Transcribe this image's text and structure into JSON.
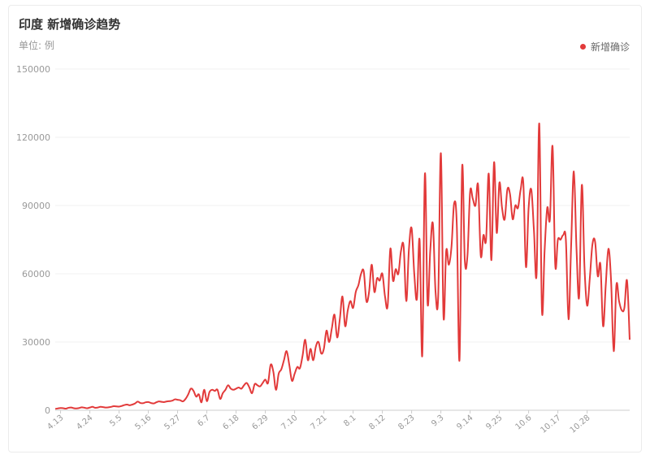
{
  "header": {
    "title": "印度 新增确诊趋势",
    "unit": "单位: 例"
  },
  "legend": {
    "label": "新增确诊",
    "color": "#e23a3a"
  },
  "chart_data": {
    "type": "line",
    "title": "印度 新增确诊趋势",
    "ylabel": "单位: 例",
    "ylim": [
      0,
      150000
    ],
    "y_ticks": [
      0,
      30000,
      60000,
      90000,
      120000,
      150000
    ],
    "x_start": "4.11",
    "x_ticks": [
      "4.13",
      "4.24",
      "5.5",
      "5.16",
      "5.27",
      "6.7",
      "6.18",
      "6.29",
      "7.10",
      "7.21",
      "8.1",
      "8.12",
      "8.23",
      "9.3",
      "9.14",
      "9.25",
      "10.6",
      "10.17",
      "10.28"
    ],
    "legend_position": "top-right",
    "grid": true,
    "series": [
      {
        "name": "新增确诊",
        "color": "#e23a3a",
        "values": [
          600,
          800,
          1000,
          900,
          700,
          1100,
          1200,
          900,
          800,
          1000,
          1300,
          1100,
          900,
          1200,
          1500,
          1100,
          1200,
          1500,
          1400,
          1200,
          1300,
          1500,
          1800,
          1700,
          1600,
          1900,
          2300,
          2500,
          2200,
          2500,
          3000,
          3800,
          3200,
          3100,
          3500,
          3600,
          3200,
          3000,
          3500,
          3900,
          3700,
          3600,
          3900,
          4000,
          4200,
          4800,
          4600,
          4400,
          3900,
          5000,
          7000,
          9500,
          8500,
          6000,
          7000,
          3500,
          9000,
          4000,
          8000,
          9000,
          8500,
          9000,
          5000,
          7500,
          9000,
          11000,
          9500,
          9000,
          9500,
          10000,
          9500,
          11000,
          12000,
          10000,
          7500,
          11500,
          11000,
          10500,
          12000,
          13500,
          12000,
          20000,
          17000,
          9000,
          16000,
          18000,
          22000,
          26000,
          20000,
          13000,
          16000,
          19000,
          18500,
          24000,
          31000,
          22000,
          27000,
          22000,
          28000,
          30000,
          25000,
          27000,
          35000,
          30000,
          36000,
          42000,
          32000,
          40000,
          50000,
          37000,
          44000,
          48000,
          45000,
          52000,
          55000,
          60000,
          61000,
          48000,
          52000,
          64000,
          52000,
          58000,
          57000,
          60000,
          50000,
          46000,
          71000,
          57000,
          62000,
          60000,
          70000,
          72000,
          48000,
          71000,
          80000,
          60000,
          49000,
          75000,
          24000,
          104000,
          47000,
          70000,
          82000,
          52000,
          50000,
          113000,
          41000,
          70000,
          64000,
          72000,
          91000,
          81000,
          22000,
          107000,
          66000,
          68000,
          96000,
          93000,
          90000,
          99000,
          68000,
          77000,
          75000,
          104000,
          66000,
          109000,
          78000,
          100000,
          89000,
          84000,
          97000,
          95000,
          84000,
          90000,
          89000,
          97000,
          100000,
          63000,
          89000,
          97000,
          79000,
          60000,
          126000,
          44000,
          70000,
          89000,
          84000,
          116000,
          64000,
          75000,
          75000,
          77000,
          75000,
          40000,
          73000,
          105000,
          71000,
          50000,
          99000,
          63000,
          46000,
          58000,
          73000,
          74000,
          59000,
          64000,
          37000,
          55000,
          71000,
          57000,
          26000,
          55000,
          48000,
          44000,
          45000,
          57000,
          31000
        ]
      }
    ]
  }
}
